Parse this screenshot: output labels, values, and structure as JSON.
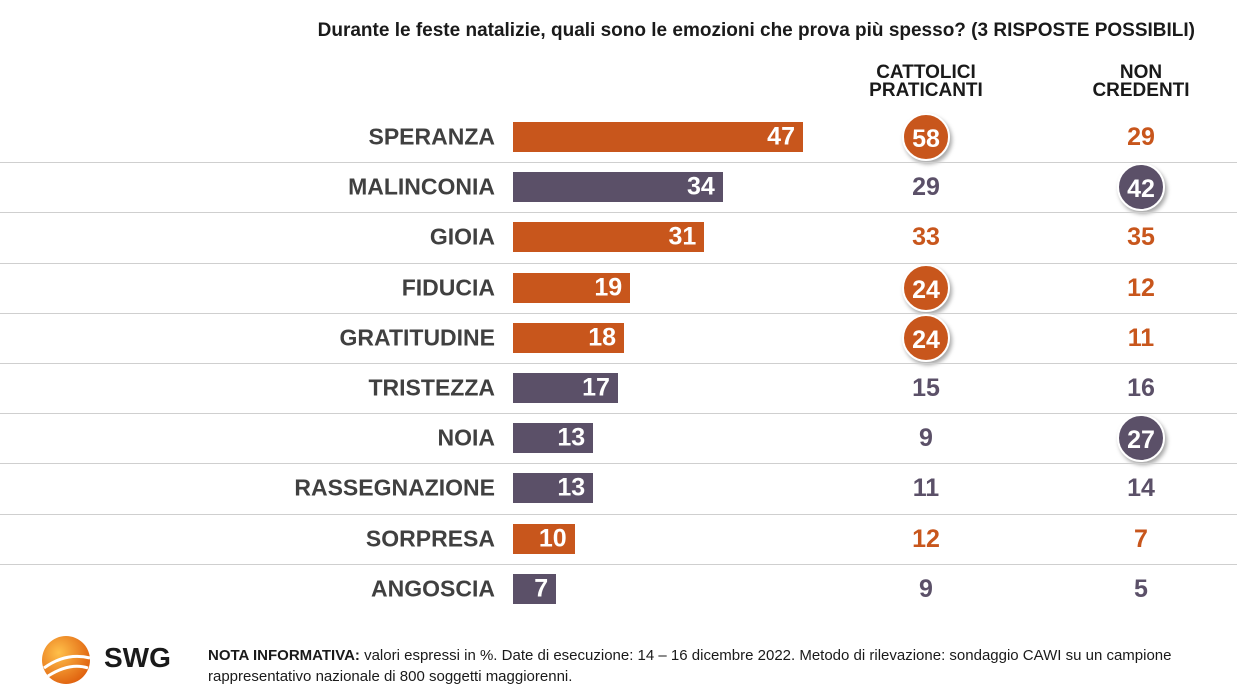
{
  "chart_data": {
    "type": "bar",
    "orientation": "horizontal",
    "title": "Durante le feste natalizie, quali sono le emozioni che prova più spesso? (3 RISPOSTE POSSIBILI)",
    "categories": [
      "SPERANZA",
      "MALINCONIA",
      "GIOIA",
      "FIDUCIA",
      "GRATITUDINE",
      "TRISTEZZA",
      "NOIA",
      "RASSEGNAZIONE",
      "SORPRESA",
      "ANGOSCIA"
    ],
    "values": [
      47,
      34,
      31,
      19,
      18,
      17,
      13,
      13,
      10,
      7
    ],
    "colors": [
      "#c8561c",
      "#5b5068",
      "#c8561c",
      "#c8561c",
      "#c8561c",
      "#5b5068",
      "#5b5068",
      "#5b5068",
      "#c8561c",
      "#5b5068"
    ],
    "columns": [
      {
        "name": "CATTOLICI PRATICANTI",
        "values": [
          58,
          29,
          33,
          24,
          24,
          15,
          9,
          11,
          12,
          9
        ],
        "colors": [
          "#c8561c",
          "#5b5068",
          "#c8561c",
          "#c8561c",
          "#c8561c",
          "#5b5068",
          "#5b5068",
          "#5b5068",
          "#c8561c",
          "#5b5068"
        ],
        "highlighted": [
          true,
          false,
          false,
          true,
          true,
          false,
          false,
          false,
          false,
          false
        ]
      },
      {
        "name": "NON CREDENTI",
        "values": [
          29,
          42,
          35,
          12,
          11,
          16,
          27,
          14,
          7,
          5
        ],
        "colors": [
          "#c8561c",
          "#5b5068",
          "#c8561c",
          "#c8561c",
          "#c8561c",
          "#5b5068",
          "#5b5068",
          "#5b5068",
          "#c8561c",
          "#5b5068"
        ],
        "highlighted": [
          false,
          true,
          false,
          false,
          false,
          false,
          true,
          false,
          false,
          false
        ]
      }
    ]
  },
  "footer": {
    "label": "NOTA INFORMATIVA:",
    "text": "valori espressi in %. Date di esecuzione: 14 – 16 dicembre 2022. Metodo di rilevazione: sondaggio CAWI su un campione rappresentativo nazionale di 800 soggetti maggiorenni."
  },
  "logo": {
    "text": "SWG"
  }
}
